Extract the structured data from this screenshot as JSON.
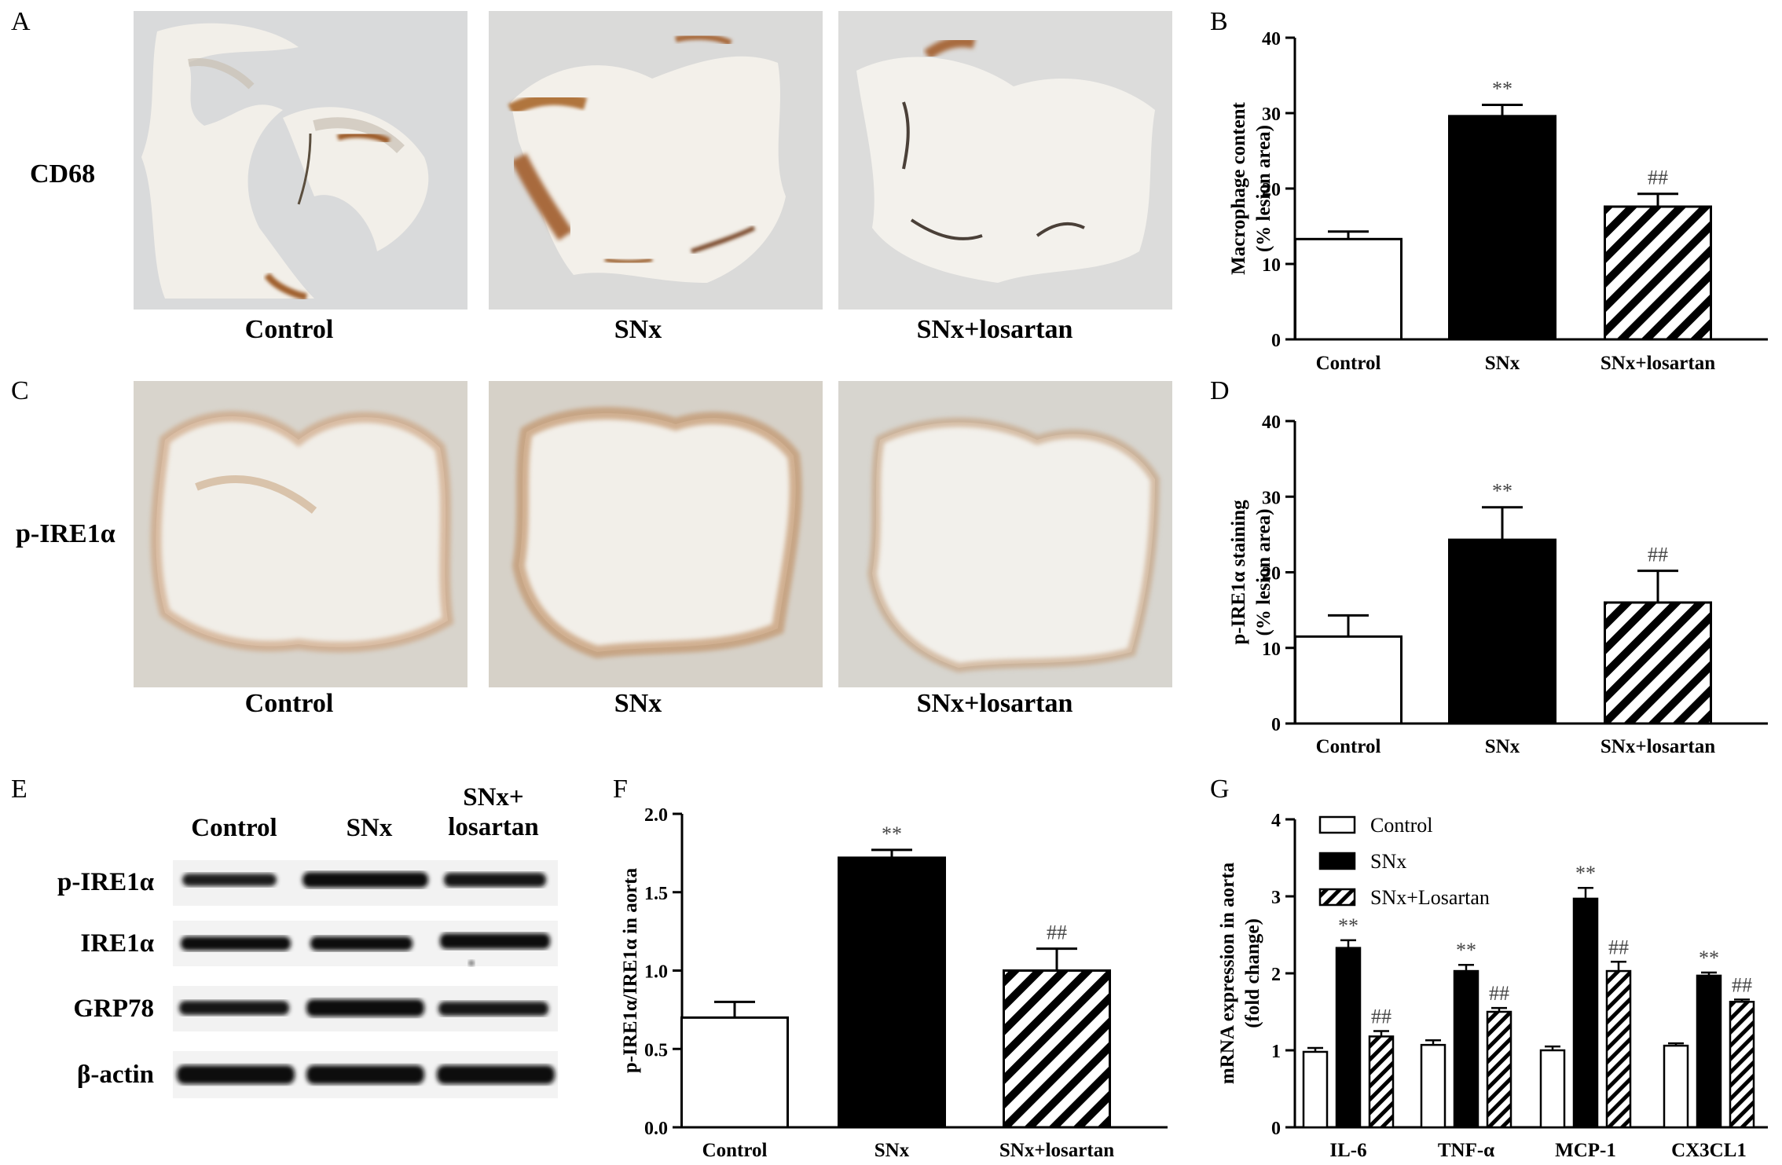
{
  "panels": {
    "A": {
      "letter": "A",
      "row_label": "CD68",
      "images": [
        "Control",
        "SNx",
        "SNx+losartan"
      ]
    },
    "C": {
      "letter": "C",
      "row_label": "p-IRE1α",
      "images": [
        "Control",
        "SNx",
        "SNx+losartan"
      ]
    },
    "E": {
      "letter": "E",
      "columns": [
        "Control",
        "SNx",
        "SNx+",
        "losartan"
      ],
      "rows": [
        "p-IRE1α",
        "IRE1α",
        "GRP78",
        "β-actin"
      ]
    }
  },
  "colors": {
    "bar_edge": "#000000",
    "bar_snx": "#000000",
    "bar_control": "#ffffff",
    "micrograph_bg": "#e9e6e0",
    "stain_brown": "#a86a3c"
  },
  "chart_data": [
    {
      "id": "B",
      "letter": "B",
      "type": "bar",
      "categories": [
        "Control",
        "SNx",
        "SNx+losartan"
      ],
      "values": [
        13.3,
        29.6,
        17.6
      ],
      "errors": [
        1.0,
        1.5,
        1.7
      ],
      "fills": [
        "white",
        "black",
        "hatch"
      ],
      "annotations": [
        "",
        "**",
        "##"
      ],
      "ylabel": [
        "Macrophage content",
        "(% lesion area)"
      ],
      "ylim": [
        0,
        40
      ],
      "yticks": [
        "0",
        "10",
        "20",
        "30",
        "40"
      ]
    },
    {
      "id": "D",
      "letter": "D",
      "type": "bar",
      "categories": [
        "Control",
        "SNx",
        "SNx+losartan"
      ],
      "values": [
        11.5,
        24.3,
        16.0
      ],
      "errors": [
        2.8,
        4.3,
        4.2
      ],
      "fills": [
        "white",
        "black",
        "hatch"
      ],
      "annotations": [
        "",
        "**",
        "##"
      ],
      "ylabel": [
        "p-IRE1α staining",
        "(% lesion area)"
      ],
      "ylim": [
        0,
        40
      ],
      "yticks": [
        "0",
        "10",
        "20",
        "30",
        "40"
      ]
    },
    {
      "id": "F",
      "letter": "F",
      "type": "bar",
      "categories": [
        "Control",
        "SNx",
        "SNx+losartan"
      ],
      "values": [
        0.7,
        1.72,
        1.0
      ],
      "errors": [
        0.1,
        0.05,
        0.14
      ],
      "fills": [
        "white",
        "black",
        "hatch"
      ],
      "annotations": [
        "",
        "**",
        "##"
      ],
      "ylabel": [
        "p-IRE1α/IRE1α in aorta"
      ],
      "ylim": [
        0,
        2.0
      ],
      "yticks": [
        "0.0",
        "0.5",
        "1.0",
        "1.5",
        "2.0"
      ]
    },
    {
      "id": "G",
      "letter": "G",
      "type": "bar",
      "categories": [
        "IL-6",
        "TNF-α",
        "MCP-1",
        "CX3CL1"
      ],
      "series": [
        {
          "name": "Control",
          "fill": "white",
          "values": [
            0.98,
            1.07,
            1.0,
            1.06
          ],
          "errors": [
            0.05,
            0.06,
            0.05,
            0.03
          ],
          "annotations": [
            "",
            "",
            "",
            ""
          ]
        },
        {
          "name": "SNx",
          "fill": "black",
          "values": [
            2.33,
            2.03,
            2.97,
            1.97
          ],
          "errors": [
            0.1,
            0.08,
            0.14,
            0.04
          ],
          "annotations": [
            "**",
            "**",
            "**",
            "**"
          ]
        },
        {
          "name": "SNx+Losartan",
          "fill": "hatch",
          "values": [
            1.18,
            1.5,
            2.03,
            1.63
          ],
          "errors": [
            0.07,
            0.05,
            0.12,
            0.03
          ],
          "annotations": [
            "##",
            "##",
            "##",
            "##"
          ]
        }
      ],
      "ylabel": [
        "mRNA expression in aorta",
        "(fold change)"
      ],
      "ylim": [
        0,
        4
      ],
      "yticks": [
        "0",
        "1",
        "2",
        "3",
        "4"
      ],
      "legend": "top-left"
    }
  ]
}
